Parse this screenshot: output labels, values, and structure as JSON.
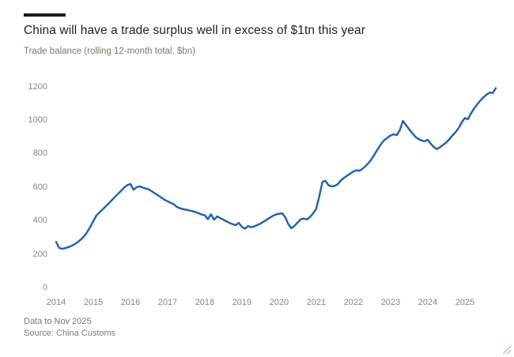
{
  "header": {
    "title": "China will have a trade surplus well in excess of $1tn this year",
    "subtitle": "Trade balance (rolling 12-month total, $bn)"
  },
  "footer": {
    "note": "Data to Nov 2025",
    "source": "Source: China Customs"
  },
  "colors": {
    "line": "#2060ac",
    "title_text": "#21211e",
    "muted_text": "#7d786f",
    "tick_text": "#8b867d",
    "accent_bar": "#1a1a1a",
    "background": "#ffffff",
    "resize_grip": "#ddbcae"
  },
  "chart_data": {
    "type": "line",
    "title": "China will have a trade surplus well in excess of $1tn this year",
    "subtitle": "Trade balance (rolling 12-month total, $bn)",
    "ylabel": "$bn (rolling 12-month total)",
    "xlabel": "",
    "frequency": "monthly",
    "x_start": "2014-01",
    "x_end": "2025-11",
    "x_ticks": [
      "2014",
      "2015",
      "2016",
      "2017",
      "2018",
      "2019",
      "2020",
      "2021",
      "2022",
      "2023",
      "2024",
      "2025"
    ],
    "y_ticks": [
      "1200",
      "1000",
      "800",
      "600",
      "400",
      "200",
      "0"
    ],
    "y_tick_values": [
      1200,
      1000,
      800,
      600,
      400,
      200,
      0
    ],
    "ylim": [
      0,
      1300
    ],
    "grid": false,
    "legend": "none",
    "series_name": "China trade balance, rolling 12-month total ($bn)",
    "values": [
      272,
      236,
      231,
      235,
      241,
      249,
      259,
      271,
      287,
      305,
      330,
      362,
      396,
      430,
      448,
      466,
      484,
      503,
      522,
      541,
      560,
      578,
      597,
      612,
      618,
      584,
      599,
      604,
      597,
      591,
      585,
      573,
      561,
      549,
      537,
      524,
      515,
      505,
      497,
      481,
      473,
      468,
      464,
      460,
      456,
      451,
      444,
      436,
      432,
      408,
      437,
      405,
      424,
      414,
      405,
      395,
      386,
      379,
      372,
      386,
      362,
      352,
      367,
      360,
      365,
      373,
      382,
      393,
      405,
      417,
      428,
      436,
      440,
      443,
      420,
      378,
      354,
      369,
      388,
      407,
      412,
      406,
      421,
      443,
      470,
      545,
      630,
      637,
      610,
      604,
      607,
      618,
      640,
      655,
      668,
      680,
      693,
      700,
      697,
      710,
      726,
      746,
      770,
      800,
      830,
      858,
      880,
      895,
      908,
      915,
      910,
      940,
      995,
      970,
      945,
      922,
      900,
      887,
      878,
      873,
      882,
      858,
      838,
      826,
      838,
      852,
      866,
      886,
      908,
      928,
      952,
      986,
      1012,
      1005,
      1040,
      1070,
      1094,
      1116,
      1136,
      1152,
      1164,
      1162,
      1190
    ]
  }
}
